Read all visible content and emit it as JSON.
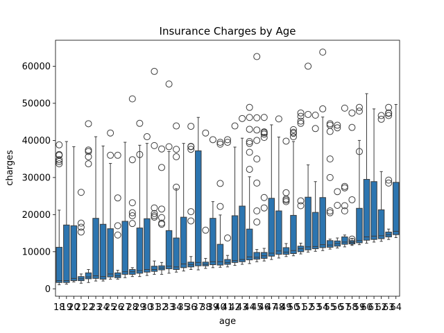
{
  "chart_data": {
    "type": "box",
    "title": "Insurance Charges by Age",
    "xlabel": "age",
    "ylabel": "charges",
    "ylim": [
      -2000,
      67000
    ],
    "yticks": [
      0,
      10000,
      20000,
      30000,
      40000,
      50000,
      60000
    ],
    "grid": false,
    "legend": "none",
    "box_color": "#2c75b0",
    "categories": [
      "18",
      "19",
      "20",
      "21",
      "22",
      "23",
      "24",
      "25",
      "26",
      "27",
      "28",
      "29",
      "30",
      "31",
      "32",
      "33",
      "34",
      "35",
      "36",
      "37",
      "38",
      "39",
      "40",
      "41",
      "42",
      "43",
      "44",
      "45",
      "46",
      "47",
      "48",
      "49",
      "50",
      "51",
      "52",
      "53",
      "54",
      "55",
      "56",
      "57",
      "58",
      "59",
      "60",
      "61",
      "62",
      "63",
      "64"
    ],
    "boxes": [
      {
        "whislo": 1100,
        "q1": 1700,
        "med": 2200,
        "q3": 11200,
        "whishi": 21200,
        "fliers": [
          33700,
          34300,
          34800,
          36000,
          36200,
          38800
        ]
      },
      {
        "whislo": 1250,
        "q1": 1700,
        "med": 2200,
        "q3": 17200,
        "whishi": 39700,
        "fliers": []
      },
      {
        "whislo": 1850,
        "q1": 2200,
        "med": 2800,
        "q3": 17000,
        "whishi": 38300,
        "fliers": []
      },
      {
        "whislo": 1500,
        "q1": 2200,
        "med": 2700,
        "q3": 3300,
        "whishi": 4000,
        "fliers": [
          15300,
          16600,
          17700,
          26000
        ]
      },
      {
        "whislo": 1700,
        "q1": 2700,
        "med": 3200,
        "q3": 4300,
        "whishi": 5200,
        "fliers": [
          33700,
          35600,
          37000,
          37400,
          44500
        ]
      },
      {
        "whislo": 2100,
        "q1": 2800,
        "med": 3500,
        "q3": 19000,
        "whishi": 41000,
        "fliers": []
      },
      {
        "whislo": 2100,
        "q1": 2600,
        "med": 3300,
        "q3": 17400,
        "whishi": 38500,
        "fliers": []
      },
      {
        "whislo": 2600,
        "q1": 3200,
        "med": 4000,
        "q3": 16200,
        "whishi": 33800,
        "fliers": [
          36000,
          42000
        ]
      },
      {
        "whislo": 2600,
        "q1": 3000,
        "med": 3500,
        "q3": 4300,
        "whishi": 5000,
        "fliers": [
          14500,
          17000,
          24500,
          36000
        ]
      },
      {
        "whislo": 3000,
        "q1": 3900,
        "med": 4600,
        "q3": 18200,
        "whishi": 39500,
        "fliers": []
      },
      {
        "whislo": 3300,
        "q1": 3900,
        "med": 4600,
        "q3": 5200,
        "whishi": 5700,
        "fliers": [
          17600,
          19700,
          20500,
          23200,
          34800,
          51200
        ]
      },
      {
        "whislo": 3300,
        "q1": 4200,
        "med": 4900,
        "q3": 16400,
        "whishi": 38700,
        "fliers": [
          36200,
          44600
        ]
      },
      {
        "whislo": 3600,
        "q1": 4500,
        "med": 5200,
        "q3": 18900,
        "whishi": 39200,
        "fliers": [
          41000
        ]
      },
      {
        "whislo": 3900,
        "q1": 4700,
        "med": 5200,
        "q3": 6100,
        "whishi": 7500,
        "fliers": [
          19300,
          19700,
          20300,
          21800,
          38600,
          58600
        ]
      },
      {
        "whislo": 3900,
        "q1": 5100,
        "med": 5600,
        "q3": 6200,
        "whishi": 7100,
        "fliers": [
          17400,
          17700,
          19200,
          21500,
          32700,
          37700
        ]
      },
      {
        "whislo": 4200,
        "q1": 5400,
        "med": 6100,
        "q3": 15700,
        "whishi": 37000,
        "fliers": [
          38300,
          55200
        ]
      },
      {
        "whislo": 4500,
        "q1": 5200,
        "med": 5900,
        "q3": 13700,
        "whishi": 27000,
        "fliers": [
          27400,
          35600,
          37600,
          43900
        ]
      },
      {
        "whislo": 4800,
        "q1": 5700,
        "med": 6700,
        "q3": 19300,
        "whishi": 39200,
        "fliers": []
      },
      {
        "whislo": 5200,
        "q1": 5900,
        "med": 6500,
        "q3": 7200,
        "whishi": 8700,
        "fliers": [
          18300,
          20800,
          37600,
          38300,
          38400,
          43800
        ]
      },
      {
        "whislo": 5100,
        "q1": 6200,
        "med": 7100,
        "q3": 37200,
        "whishi": 46200,
        "fliers": []
      },
      {
        "whislo": 5500,
        "q1": 6200,
        "med": 6600,
        "q3": 7200,
        "whishi": 8200,
        "fliers": [
          15800,
          42000
        ]
      },
      {
        "whislo": 5700,
        "q1": 6500,
        "med": 7300,
        "q3": 19000,
        "whishi": 23500,
        "fliers": [
          40200
        ]
      },
      {
        "whislo": 5800,
        "q1": 6400,
        "med": 7300,
        "q3": 12000,
        "whishi": 19900,
        "fliers": [
          22200,
          28400,
          39000,
          39500
        ]
      },
      {
        "whislo": 5900,
        "q1": 6600,
        "med": 7100,
        "q3": 7900,
        "whishi": 9000,
        "fliers": [
          13700,
          39500,
          40200
        ]
      },
      {
        "whislo": 6300,
        "q1": 7100,
        "med": 7600,
        "q3": 19700,
        "whishi": 38200,
        "fliers": [
          43900
        ]
      },
      {
        "whislo": 6600,
        "q1": 7300,
        "med": 7900,
        "q3": 22300,
        "whishi": 40600,
        "fliers": [
          45900
        ]
      },
      {
        "whislo": 6800,
        "q1": 7800,
        "med": 8600,
        "q3": 16100,
        "whishi": 30200,
        "fliers": [
          32200,
          36800,
          39200,
          39700,
          43000,
          46200,
          48900
        ]
      },
      {
        "whislo": 7300,
        "q1": 8000,
        "med": 8500,
        "q3": 9800,
        "whishi": 10600,
        "fliers": [
          18000,
          21000,
          28500,
          35000,
          40000,
          42800,
          46100,
          62600
        ]
      },
      {
        "whislo": 7500,
        "q1": 8200,
        "med": 8900,
        "q3": 9800,
        "whishi": 10900,
        "fliers": [
          21800,
          24600,
          40800,
          41700,
          42100,
          42300,
          46200
        ]
      },
      {
        "whislo": 7900,
        "q1": 8800,
        "med": 9600,
        "q3": 24400,
        "whishi": 44200,
        "fliers": []
      },
      {
        "whislo": 8300,
        "q1": 9300,
        "med": 10200,
        "q3": 21000,
        "whishi": 40900,
        "fliers": [
          45800
        ]
      },
      {
        "whislo": 8700,
        "q1": 9300,
        "med": 9900,
        "q3": 11100,
        "whishi": 12200,
        "fliers": [
          23500,
          23900,
          24200,
          25900,
          39800
        ]
      },
      {
        "whislo": 8900,
        "q1": 9500,
        "med": 10300,
        "q3": 19800,
        "whishi": 39700,
        "fliers": [
          41000,
          41900,
          42200,
          42900
        ]
      },
      {
        "whislo": 9400,
        "q1": 10000,
        "med": 10800,
        "q3": 11500,
        "whishi": 12300,
        "fliers": [
          22400,
          23700,
          44600,
          45200,
          46500,
          47400
        ]
      },
      {
        "whislo": 9900,
        "q1": 10500,
        "med": 11300,
        "q3": 24700,
        "whishi": 33400,
        "fliers": [
          47000,
          60000
        ]
      },
      {
        "whislo": 10100,
        "q1": 10800,
        "med": 11400,
        "q3": 20600,
        "whishi": 28900,
        "fliers": [
          43200,
          46800
        ]
      },
      {
        "whislo": 10300,
        "q1": 11100,
        "med": 11900,
        "q3": 24600,
        "whishi": 46300,
        "fliers": [
          48500,
          63800
        ]
      },
      {
        "whislo": 10700,
        "q1": 11200,
        "med": 11800,
        "q3": 13000,
        "whishi": 13400,
        "fliers": [
          20500,
          21000,
          30000,
          35000,
          42400,
          44100,
          44500
        ]
      },
      {
        "whislo": 11000,
        "q1": 11500,
        "med": 12200,
        "q3": 12900,
        "whishi": 13700,
        "fliers": [
          22500,
          26200,
          43400,
          44100
        ]
      },
      {
        "whislo": 11300,
        "q1": 12000,
        "med": 12600,
        "q3": 14000,
        "whishi": 14500,
        "fliers": [
          21000,
          22400,
          27200,
          27600,
          48700
        ]
      },
      {
        "whislo": 11700,
        "q1": 12100,
        "med": 12500,
        "q3": 13000,
        "whishi": 13600,
        "fliers": [
          12800,
          13400,
          24000,
          43500,
          47400
        ]
      },
      {
        "whislo": 11900,
        "q1": 12400,
        "med": 13000,
        "q3": 21700,
        "whishi": 40000,
        "fliers": [
          37000,
          47900,
          48900
        ]
      },
      {
        "whislo": 12300,
        "q1": 13100,
        "med": 14000,
        "q3": 29500,
        "whishi": 52600,
        "fliers": []
      },
      {
        "whislo": 12600,
        "q1": 13300,
        "med": 14200,
        "q3": 28900,
        "whishi": 48500,
        "fliers": []
      },
      {
        "whislo": 12800,
        "q1": 13500,
        "med": 14300,
        "q3": 21300,
        "whishi": 31600,
        "fliers": [
          45700,
          46700
        ]
      },
      {
        "whislo": 13300,
        "q1": 14000,
        "med": 14600,
        "q3": 15300,
        "whishi": 16100,
        "fliers": [
          28500,
          29300,
          46700,
          47300,
          47400,
          48900
        ]
      },
      {
        "whislo": 13800,
        "q1": 14600,
        "med": 15500,
        "q3": 28700,
        "whishi": 49700,
        "fliers": []
      }
    ]
  }
}
